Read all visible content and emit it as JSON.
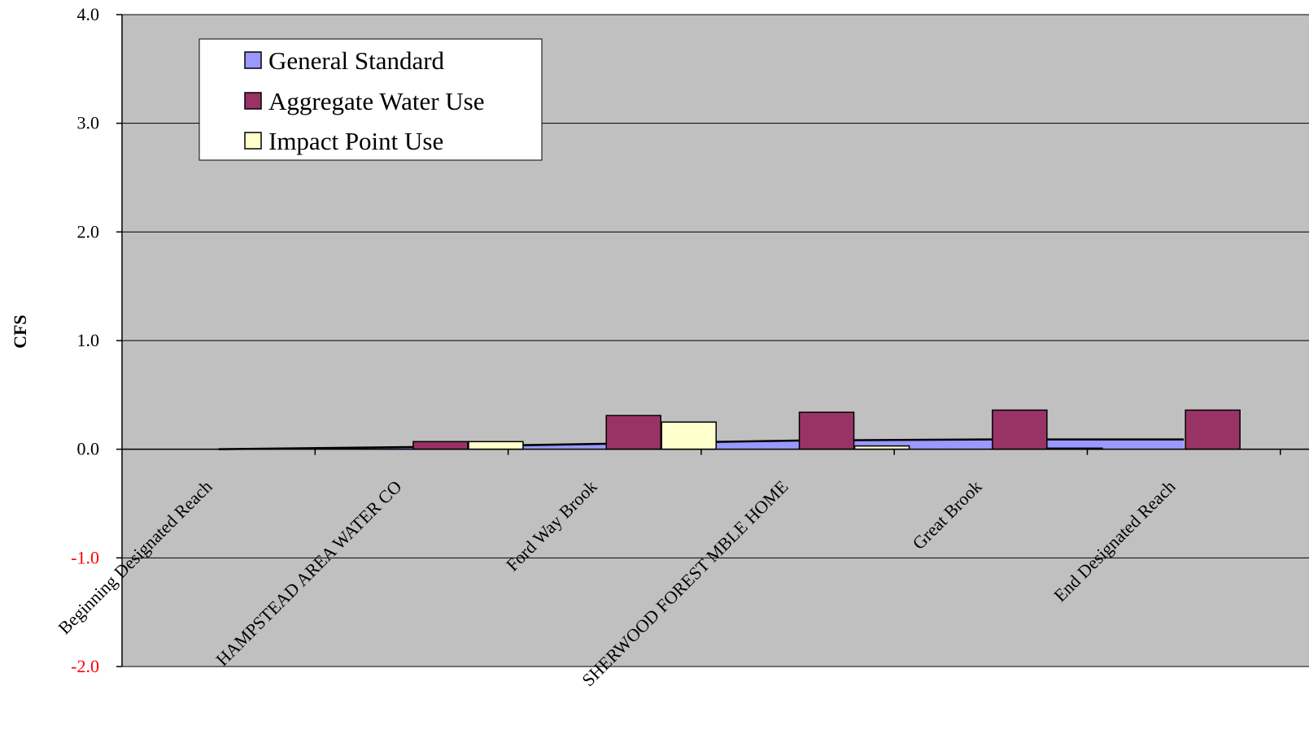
{
  "chart_data": {
    "type": "bar",
    "title": "",
    "xlabel": "",
    "ylabel": "CFS",
    "ylim": [
      -2.0,
      4.0
    ],
    "yticks": [
      "4.0",
      "3.0",
      "2.0",
      "1.0",
      "0.0",
      "-1.0",
      "-2.0"
    ],
    "ytick_values": [
      4.0,
      3.0,
      2.0,
      1.0,
      0.0,
      -1.0,
      -2.0
    ],
    "negative_tick_color": "#ff0000",
    "grid": true,
    "plot_background": "#c0c0c0",
    "legend_position": "top-left",
    "categories": [
      "Beginning Designated Reach",
      "HAMPSTEAD AREA WATER CO",
      "Ford Way Brook",
      "SHERWOOD FOREST MBLE HOME",
      "Great Brook",
      "End Designated Reach"
    ],
    "series": [
      {
        "name": "General Standard",
        "type": "area",
        "color": "#9999ff",
        "values": [
          0.0,
          0.02,
          0.05,
          0.08,
          0.09,
          0.09
        ]
      },
      {
        "name": "Aggregate Water Use",
        "type": "bar",
        "color": "#993366",
        "values": [
          0.0,
          0.07,
          0.31,
          0.34,
          0.36,
          0.36
        ]
      },
      {
        "name": "Impact Point Use",
        "type": "bar",
        "color": "#ffffcc",
        "values": [
          0.0,
          0.07,
          0.25,
          0.03,
          0.01,
          0.0
        ]
      }
    ]
  }
}
